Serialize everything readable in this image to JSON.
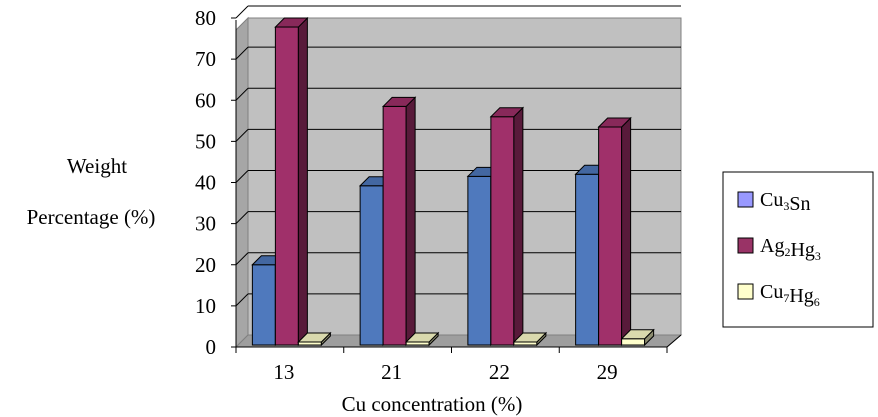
{
  "chart_data": {
    "type": "bar",
    "title": "",
    "xlabel": "Cu concentration (%)",
    "ylabel": [
      "Weight",
      "Percentage (%)"
    ],
    "ylim": [
      0,
      80
    ],
    "yticks": [
      "0",
      "10",
      "20",
      "30",
      "40",
      "50",
      "60",
      "70",
      "80"
    ],
    "categories": [
      "13",
      "21",
      "22",
      "29"
    ],
    "grid": "horizontal",
    "legend_position": "right",
    "style": "3d-clustered-column",
    "series": [
      {
        "name": "Cu3Sn",
        "label_base": [
          "Cu",
          "Sn"
        ],
        "label_sub": [
          "3",
          ""
        ],
        "values": [
          20,
          39.2,
          41.5,
          42
        ],
        "color": "#4f79bd"
      },
      {
        "name": "Ag2Hg3",
        "label_base": [
          "Ag",
          "Hg"
        ],
        "label_sub": [
          "2",
          "3"
        ],
        "values": [
          77.8,
          58.5,
          56,
          53.5
        ],
        "color": "#a0306a"
      },
      {
        "name": "Cu7Hg6",
        "label_base": [
          "Cu",
          "Hg"
        ],
        "label_sub": [
          "7",
          "6"
        ],
        "values": [
          0,
          0,
          0,
          2
        ],
        "color": "#ffffcc"
      }
    ],
    "colors": {
      "plot_wall": "#c0c0c0",
      "gridline": "#000000"
    }
  }
}
